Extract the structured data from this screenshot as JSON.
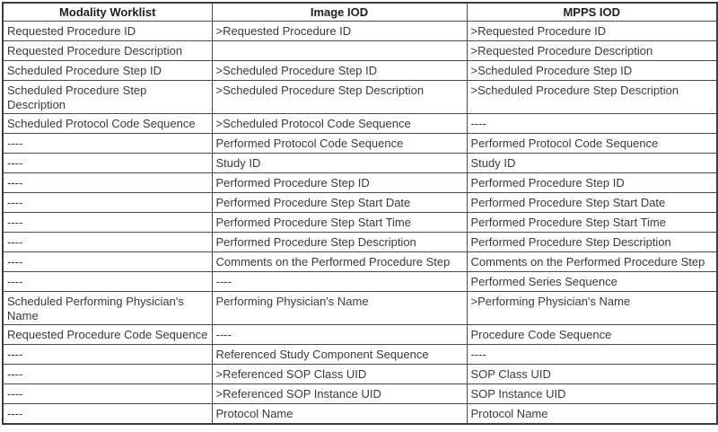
{
  "document": {
    "kind": "attribute-mapping-table",
    "colors": {
      "background": "#ffffff",
      "border_outer": "#3d3d3d",
      "border_inner": "#4a4a4a",
      "header_text": "#1f1f1f",
      "body_text": "#3a3a3a"
    }
  },
  "table": {
    "headers": [
      "Modality Worklist",
      "Image IOD",
      "MPPS IOD"
    ],
    "rows": [
      [
        "Requested Procedure ID",
        ">Requested Procedure ID",
        ">Requested Procedure ID"
      ],
      [
        "Requested Procedure Description",
        "",
        ">Requested Procedure Description"
      ],
      [
        "Scheduled Procedure Step ID",
        ">Scheduled Procedure Step ID",
        ">Scheduled Procedure Step ID"
      ],
      [
        "Scheduled Procedure Step Description",
        ">Scheduled Procedure Step Description",
        ">Scheduled Procedure Step Description"
      ],
      [
        "Scheduled Protocol Code Sequence",
        ">Scheduled Protocol Code Sequence",
        "----"
      ],
      [
        "----",
        "Performed Protocol Code Sequence",
        "Performed Protocol Code Sequence"
      ],
      [
        "----",
        "Study ID",
        "Study ID"
      ],
      [
        "----",
        "Performed Procedure Step ID",
        "Performed Procedure Step ID"
      ],
      [
        "----",
        "Performed Procedure Step Start Date",
        "Performed Procedure Step Start Date"
      ],
      [
        "----",
        "Performed Procedure Step Start Time",
        "Performed Procedure Step Start Time"
      ],
      [
        "----",
        "Performed Procedure Step Description",
        "Performed Procedure Step Description"
      ],
      [
        "----",
        "Comments on the Performed Procedure Step",
        "Comments on the Performed Procedure Step"
      ],
      [
        "----",
        "----",
        "Performed Series Sequence"
      ],
      [
        "Scheduled Performing Physician's Name",
        "Performing Physician's Name",
        ">Performing Physician's Name"
      ],
      [
        "Requested Procedure Code Sequence",
        "----",
        "Procedure Code Sequence"
      ],
      [
        "----",
        "Referenced Study Component Sequence",
        "----"
      ],
      [
        "----",
        ">Referenced SOP Class UID",
        "SOP Class UID"
      ],
      [
        "----",
        ">Referenced SOP Instance UID",
        "SOP Instance UID"
      ],
      [
        "----",
        "Protocol Name",
        "Protocol Name"
      ]
    ]
  }
}
